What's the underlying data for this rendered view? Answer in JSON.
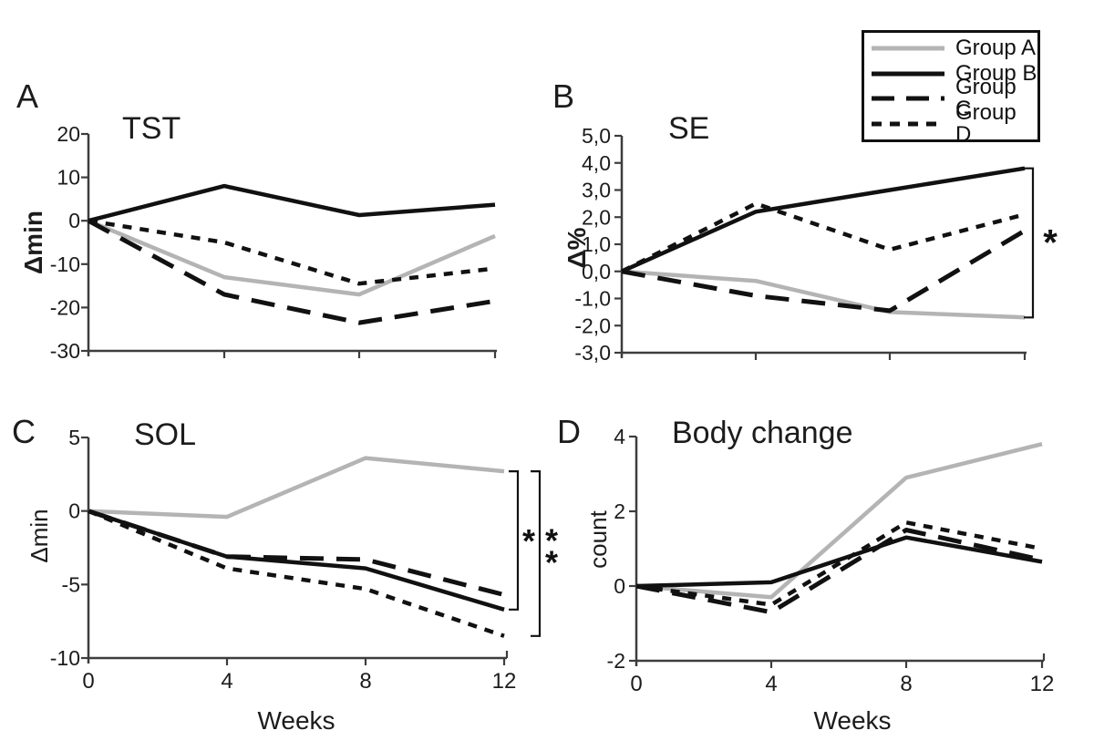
{
  "figure": {
    "background": "#ffffff",
    "black": "#111111",
    "gray": "#b4b4b4",
    "axis_color": "#3d3d3d",
    "text_color": "#1c1c1c"
  },
  "legend": {
    "items": [
      {
        "label": "Group A",
        "series": "Group A"
      },
      {
        "label": "Group B",
        "series": "Group B"
      },
      {
        "label": "Group C",
        "series": "Group C"
      },
      {
        "label": "Group D",
        "series": "Group D"
      }
    ]
  },
  "series_styles": {
    "Group A": {
      "color": "#b4b4b4",
      "dash": "solid",
      "width": 4.5
    },
    "Group B": {
      "color": "#111111",
      "dash": "solid",
      "width": 4.5
    },
    "Group C": {
      "color": "#111111",
      "dash": "long-dash",
      "width": 5
    },
    "Group D": {
      "color": "#111111",
      "dash": "short-dash",
      "width": 4.5
    }
  },
  "chart_data": [
    {
      "type": "line",
      "panel": "A",
      "title": "TST",
      "ylabel": "Δmin",
      "ylabel_bold": true,
      "xlabel": null,
      "x": [
        0,
        4,
        8,
        12
      ],
      "show_x_tick_labels": false,
      "ylim": [
        -30,
        20
      ],
      "yticks": [
        20,
        10,
        0,
        -10,
        -20,
        -30
      ],
      "ytick_labels": [
        "20",
        "10",
        "0",
        "-10",
        "-20",
        "-30"
      ],
      "series": [
        {
          "name": "Group A",
          "values": [
            0,
            -13,
            -17,
            -3.5
          ]
        },
        {
          "name": "Group B",
          "values": [
            0,
            8,
            1.3,
            3.7
          ]
        },
        {
          "name": "Group C",
          "values": [
            0,
            -17,
            -23.5,
            -18.5
          ]
        },
        {
          "name": "Group D",
          "values": [
            0,
            -5,
            -14.5,
            -11
          ]
        }
      ],
      "annotations": []
    },
    {
      "type": "line",
      "panel": "B",
      "title": "SE",
      "ylabel": "Δ%",
      "ylabel_bold": true,
      "xlabel": null,
      "x": [
        0,
        4,
        8,
        12
      ],
      "show_x_tick_labels": false,
      "ylim": [
        -3,
        5
      ],
      "yticks": [
        5,
        4,
        3,
        2,
        1,
        0,
        -1,
        -2,
        -3
      ],
      "ytick_labels": [
        "5,0",
        "4,0",
        "3,0",
        "2,0",
        "1,0",
        "0,0",
        "-1,0",
        "-2,0",
        "-3,0"
      ],
      "series": [
        {
          "name": "Group A",
          "values": [
            0,
            -0.35,
            -1.5,
            -1.7
          ]
        },
        {
          "name": "Group B",
          "values": [
            0,
            2.2,
            3.0,
            3.8
          ]
        },
        {
          "name": "Group C",
          "values": [
            0,
            -0.9,
            -1.45,
            1.5
          ]
        },
        {
          "name": "Group D",
          "values": [
            0,
            2.5,
            0.8,
            2.1
          ]
        }
      ],
      "annotations": [
        {
          "type": "bracket",
          "label": "*",
          "from_value": 3.8,
          "to_value": -1.7
        }
      ]
    },
    {
      "type": "line",
      "panel": "C",
      "title": "SOL",
      "ylabel": "Δmin",
      "ylabel_bold": false,
      "xlabel": "Weeks",
      "x": [
        0,
        4,
        8,
        12
      ],
      "show_x_tick_labels": true,
      "x_tick_labels": [
        "0",
        "4",
        "8",
        "12"
      ],
      "ylim": [
        -10,
        5
      ],
      "yticks": [
        5,
        0,
        -5,
        -10
      ],
      "ytick_labels": [
        "5",
        "0",
        "-5",
        "-10"
      ],
      "series": [
        {
          "name": "Group A",
          "values": [
            0,
            -0.4,
            3.6,
            2.7
          ]
        },
        {
          "name": "Group B",
          "values": [
            0,
            -3.1,
            -3.9,
            -6.7
          ]
        },
        {
          "name": "Group C",
          "values": [
            0,
            -3.1,
            -3.3,
            -5.7
          ]
        },
        {
          "name": "Group D",
          "values": [
            0,
            -3.9,
            -5.3,
            -8.5
          ]
        }
      ],
      "annotations": [
        {
          "type": "bracket",
          "label": "*",
          "from_value": 2.7,
          "to_value": -6.7
        },
        {
          "type": "bracket",
          "label": "**",
          "from_value": 2.7,
          "to_value": -8.5
        }
      ]
    },
    {
      "type": "line",
      "panel": "D",
      "title": "Body change",
      "ylabel": "count",
      "ylabel_bold": false,
      "xlabel": "Weeks",
      "x": [
        0,
        4,
        8,
        12
      ],
      "show_x_tick_labels": true,
      "x_tick_labels": [
        "0",
        "4",
        "8",
        "12"
      ],
      "ylim": [
        -2,
        4
      ],
      "yticks": [
        4,
        2,
        0,
        -2
      ],
      "ytick_labels": [
        "4",
        "2",
        "0",
        "-2"
      ],
      "series": [
        {
          "name": "Group A",
          "values": [
            0,
            -0.3,
            2.9,
            3.8
          ]
        },
        {
          "name": "Group B",
          "values": [
            0,
            0.1,
            1.3,
            0.65
          ]
        },
        {
          "name": "Group C",
          "values": [
            0,
            -0.7,
            1.5,
            0.7
          ]
        },
        {
          "name": "Group D",
          "values": [
            0,
            -0.5,
            1.7,
            1.0
          ]
        }
      ],
      "annotations": []
    }
  ]
}
